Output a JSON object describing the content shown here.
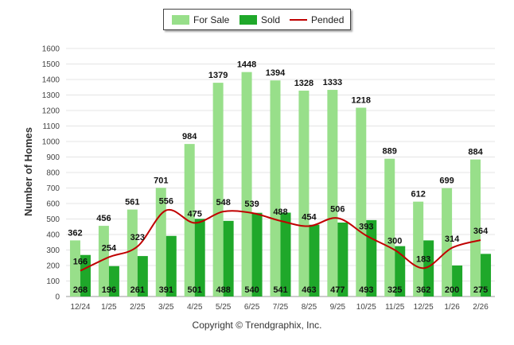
{
  "chart_data": {
    "type": "bar",
    "categories": [
      "12/24",
      "1/25",
      "2/25",
      "3/25",
      "4/25",
      "5/25",
      "6/25",
      "7/25",
      "8/25",
      "9/25",
      "10/25",
      "11/25",
      "12/25",
      "1/26",
      "2/26"
    ],
    "series": [
      {
        "name": "For Sale",
        "kind": "bar",
        "color": "#98df8a",
        "values": [
          362,
          456,
          561,
          701,
          984,
          1379,
          1448,
          1394,
          1328,
          1333,
          1218,
          889,
          612,
          699,
          884
        ]
      },
      {
        "name": "Sold",
        "kind": "bar",
        "color": "#1fa82a",
        "values": [
          268,
          196,
          261,
          391,
          501,
          488,
          540,
          541,
          463,
          477,
          493,
          325,
          362,
          200,
          275
        ]
      },
      {
        "name": "Pended",
        "kind": "line",
        "color": "#c00000",
        "values": [
          166,
          254,
          323,
          556,
          475,
          548,
          539,
          488,
          454,
          506,
          393,
          300,
          183,
          314,
          364
        ]
      }
    ],
    "ylabel": "Number of Homes",
    "xlabel": "",
    "ylim": [
      0,
      1600
    ],
    "yticks": [
      0,
      100,
      200,
      300,
      400,
      500,
      600,
      700,
      800,
      900,
      1000,
      1100,
      1200,
      1300,
      1400,
      1500,
      1600
    ],
    "grid": true,
    "legend": "top-center"
  },
  "legend": {
    "for_sale": "For Sale",
    "sold": "Sold",
    "pended": "Pended"
  },
  "footer": {
    "copyright": "Copyright © Trendgraphix, Inc."
  }
}
